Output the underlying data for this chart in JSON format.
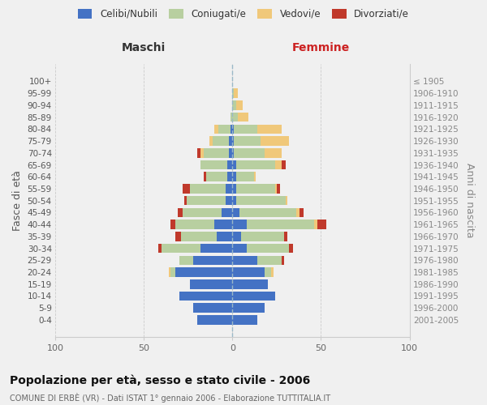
{
  "age_groups": [
    "0-4",
    "5-9",
    "10-14",
    "15-19",
    "20-24",
    "25-29",
    "30-34",
    "35-39",
    "40-44",
    "45-49",
    "50-54",
    "55-59",
    "60-64",
    "65-69",
    "70-74",
    "75-79",
    "80-84",
    "85-89",
    "90-94",
    "95-99",
    "100+"
  ],
  "birth_years": [
    "2001-2005",
    "1996-2000",
    "1991-1995",
    "1986-1990",
    "1981-1985",
    "1976-1980",
    "1971-1975",
    "1966-1970",
    "1961-1965",
    "1956-1960",
    "1951-1955",
    "1946-1950",
    "1941-1945",
    "1936-1940",
    "1931-1935",
    "1926-1930",
    "1921-1925",
    "1916-1920",
    "1911-1915",
    "1906-1910",
    "≤ 1905"
  ],
  "colors": {
    "celibi": "#4472c4",
    "coniugati": "#b8cfa0",
    "vedovi": "#f0c87a",
    "divorziati": "#c0392b"
  },
  "maschi": {
    "celibi": [
      20,
      22,
      30,
      24,
      32,
      22,
      18,
      9,
      10,
      6,
      4,
      4,
      3,
      3,
      2,
      2,
      1,
      0,
      0,
      0,
      0
    ],
    "coniugati": [
      0,
      0,
      0,
      0,
      3,
      8,
      22,
      20,
      22,
      22,
      22,
      20,
      12,
      15,
      14,
      9,
      7,
      1,
      0,
      0,
      0
    ],
    "vedovi": [
      0,
      0,
      0,
      0,
      1,
      0,
      0,
      0,
      0,
      0,
      0,
      0,
      0,
      0,
      2,
      2,
      2,
      0,
      0,
      0,
      0
    ],
    "divorziati": [
      0,
      0,
      0,
      0,
      0,
      0,
      2,
      3,
      3,
      3,
      1,
      4,
      1,
      0,
      2,
      0,
      0,
      0,
      0,
      0,
      0
    ]
  },
  "femmine": {
    "celibi": [
      14,
      18,
      24,
      20,
      18,
      14,
      8,
      5,
      8,
      4,
      2,
      2,
      2,
      2,
      1,
      1,
      1,
      0,
      0,
      0,
      0
    ],
    "coniugati": [
      0,
      0,
      0,
      0,
      4,
      14,
      24,
      24,
      38,
      32,
      28,
      22,
      10,
      22,
      17,
      15,
      13,
      3,
      2,
      1,
      0
    ],
    "vedovi": [
      0,
      0,
      0,
      0,
      1,
      0,
      0,
      0,
      2,
      2,
      1,
      1,
      1,
      4,
      10,
      16,
      14,
      6,
      4,
      2,
      0
    ],
    "divorziati": [
      0,
      0,
      0,
      0,
      0,
      1,
      2,
      2,
      5,
      2,
      0,
      2,
      0,
      2,
      0,
      0,
      0,
      0,
      0,
      0,
      0
    ]
  },
  "title": "Popolazione per età, sesso e stato civile - 2006",
  "subtitle": "COMUNE DI ERBÈ (VR) - Dati ISTAT 1° gennaio 2006 - Elaborazione TUTTITALIA.IT",
  "xlabel_left": "Maschi",
  "xlabel_right": "Femmine",
  "ylabel_left": "Fasce di età",
  "ylabel_right": "Anni di nascita",
  "xlim": 100,
  "legend_labels": [
    "Celibi/Nubili",
    "Coniugati/e",
    "Vedovi/e",
    "Divorziati/e"
  ],
  "background_color": "#f0f0f0"
}
